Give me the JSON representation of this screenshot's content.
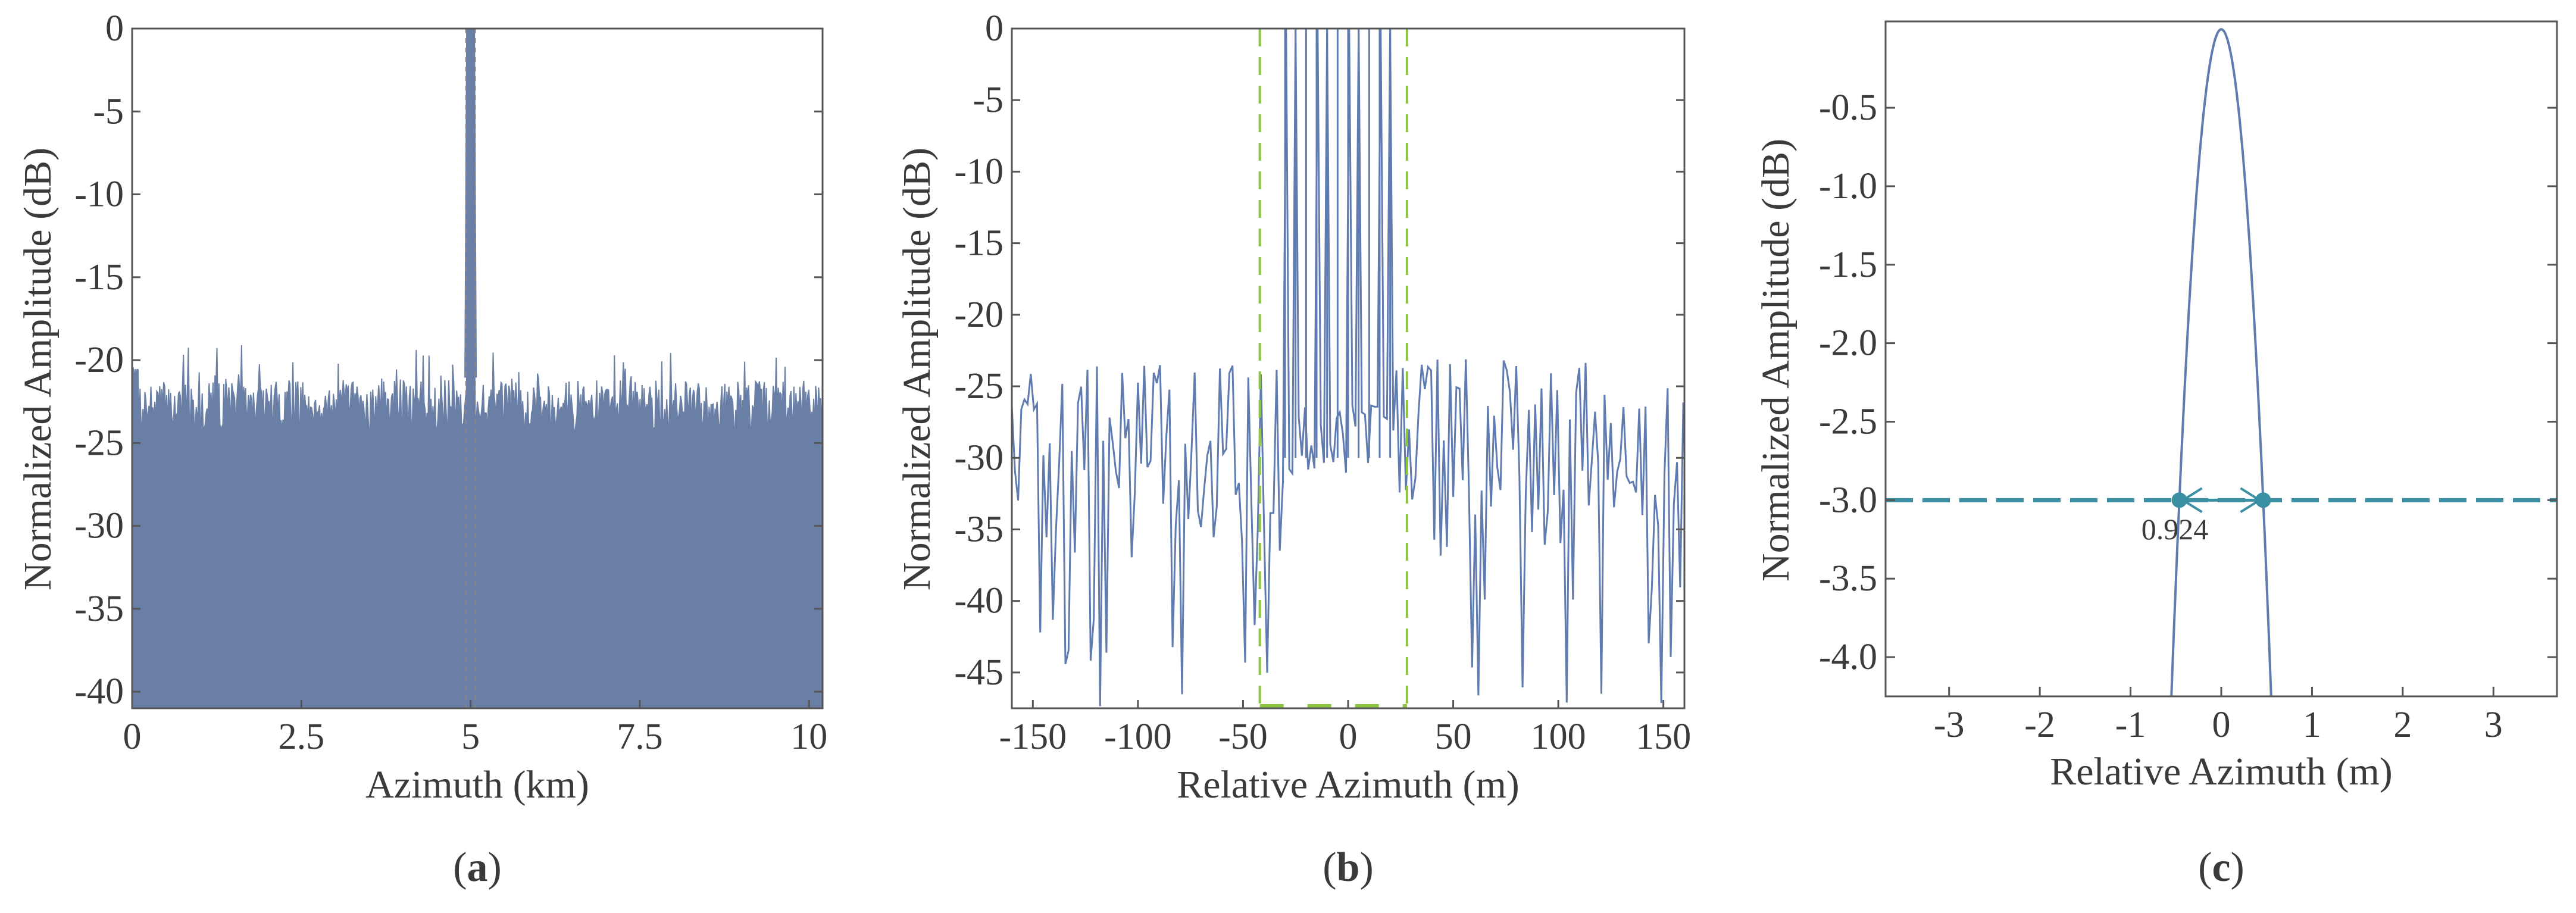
{
  "chart_data": [
    {
      "panel": "a",
      "type": "area",
      "caption_open": "(",
      "caption_letter": "a",
      "caption_close": ")",
      "xlabel": "Azimuth (km)",
      "ylabel": "Normalized Amplitude (dB)",
      "xlim": [
        0,
        10.2
      ],
      "ylim": [
        -41,
        0
      ],
      "xticks": [
        0,
        2.5,
        5,
        7.5,
        10
      ],
      "xtick_labels": [
        "0",
        "2.5",
        "5",
        "7.5",
        "10"
      ],
      "yticks": [
        0,
        -5,
        -10,
        -15,
        -20,
        -25,
        -30,
        -35,
        -40
      ],
      "ytick_labels": [
        "0",
        "-5",
        "-10",
        "-15",
        "-20",
        "-25",
        "-30",
        "-35",
        "-40"
      ],
      "fill_color": "#6a7fa6",
      "noise_floor_mean": -22.8,
      "noise_floor_spread": 1.6,
      "peak": {
        "x": 5.0,
        "y": 0,
        "mainlobe_width_km": 0.06
      },
      "reference_lines_x": [
        4.93,
        5.07
      ]
    },
    {
      "panel": "b",
      "type": "line",
      "caption_open": "(",
      "caption_letter": "b",
      "caption_close": ")",
      "xlabel": "Relative Azimuth (m)",
      "ylabel": "Normalized Amplitude (dB)",
      "xlim": [
        -160,
        160
      ],
      "ylim": [
        -47.5,
        0
      ],
      "xticks": [
        -150,
        -100,
        -50,
        0,
        50,
        100,
        150
      ],
      "xtick_labels": [
        "-150",
        "-100",
        "-50",
        "0",
        "50",
        "100",
        "150"
      ],
      "yticks": [
        0,
        -5,
        -10,
        -15,
        -20,
        -25,
        -30,
        -35,
        -40,
        -45
      ],
      "ytick_labels": [
        "0",
        "-5",
        "-10",
        "-15",
        "-20",
        "-25",
        "-30",
        "-35",
        "-40",
        "-45"
      ],
      "line_color": "#5f7bb0",
      "marker_color": "#8cc63e",
      "sidelobe_range_db": [
        -46,
        -23
      ],
      "peaks_x": [
        -30,
        -25,
        -20,
        -15,
        -10,
        -5,
        0,
        5,
        10,
        15,
        20
      ],
      "peaks_y": [
        0,
        0,
        0,
        0,
        0,
        0,
        0,
        0,
        0,
        0,
        0
      ],
      "vertical_markers_x": [
        -42,
        28
      ]
    },
    {
      "panel": "c",
      "type": "line",
      "caption_open": "(",
      "caption_letter": "c",
      "caption_close": ")",
      "xlabel": "Relative Azimuth (m)",
      "ylabel": "Normalized Amplitude (dB)",
      "xlim": [
        -3.7,
        3.7
      ],
      "ylim": [
        -4.25,
        0.05
      ],
      "xticks": [
        -3,
        -2,
        -1,
        0,
        1,
        2,
        3
      ],
      "xtick_labels": [
        "-3",
        "-2",
        "-1",
        "0",
        "1",
        "2",
        "3"
      ],
      "yticks": [
        -0.5,
        -1.0,
        -1.5,
        -2.0,
        -2.5,
        -3.0,
        -3.5,
        -4.0
      ],
      "ytick_labels": [
        "-0.5",
        "-1.0",
        "-1.5",
        "-2.0",
        "-2.5",
        "-3.0",
        "-3.5",
        "-4.0"
      ],
      "line_color": "#5f7bb0",
      "threshold_color": "#3a8fa3",
      "threshold_db": -3.0,
      "mainlobe_3db_width_m": 0.924,
      "width_points_x": [
        -0.462,
        0.462
      ],
      "width_annotation": "0.924"
    }
  ]
}
